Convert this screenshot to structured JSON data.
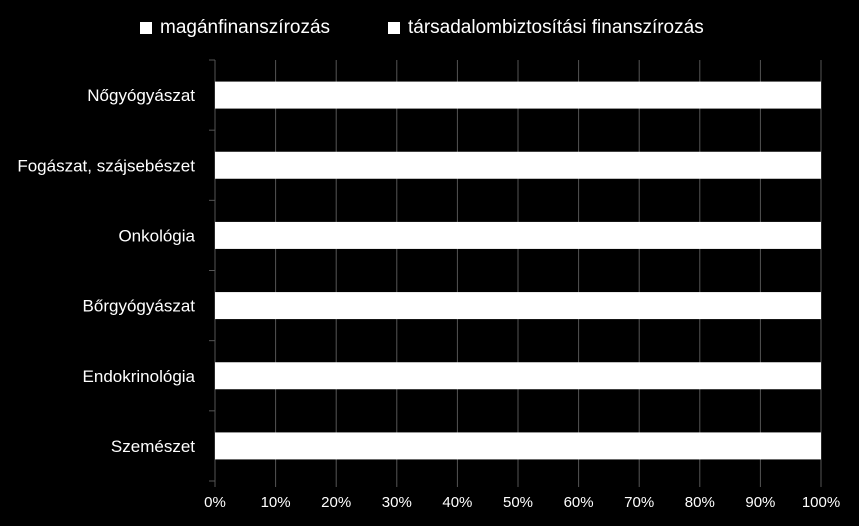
{
  "chart_data": {
    "type": "bar",
    "orientation": "horizontal",
    "stacked": true,
    "percent_stacked": true,
    "categories": [
      "Nőgyógyászat",
      "Fogászat, szájsebészet",
      "Onkológia",
      "Bőrgyógyászat",
      "Endokrinológia",
      "Szemészet"
    ],
    "series": [
      {
        "name": "magánfinanszírozás",
        "values": [
          100,
          100,
          100,
          100,
          100,
          100
        ],
        "color": "#FFFFFF"
      },
      {
        "name": "társadalombiztosítási finanszírozás",
        "values": [
          0,
          0,
          0,
          0,
          0,
          0
        ],
        "color": "#FFFFFF"
      }
    ],
    "x_ticks": [
      "0%",
      "10%",
      "20%",
      "30%",
      "40%",
      "50%",
      "60%",
      "70%",
      "80%",
      "90%",
      "100%"
    ],
    "xlim": [
      0,
      100
    ],
    "grid": true,
    "legend_position": "top",
    "background": "#000000",
    "gridline_color": "#555555"
  }
}
